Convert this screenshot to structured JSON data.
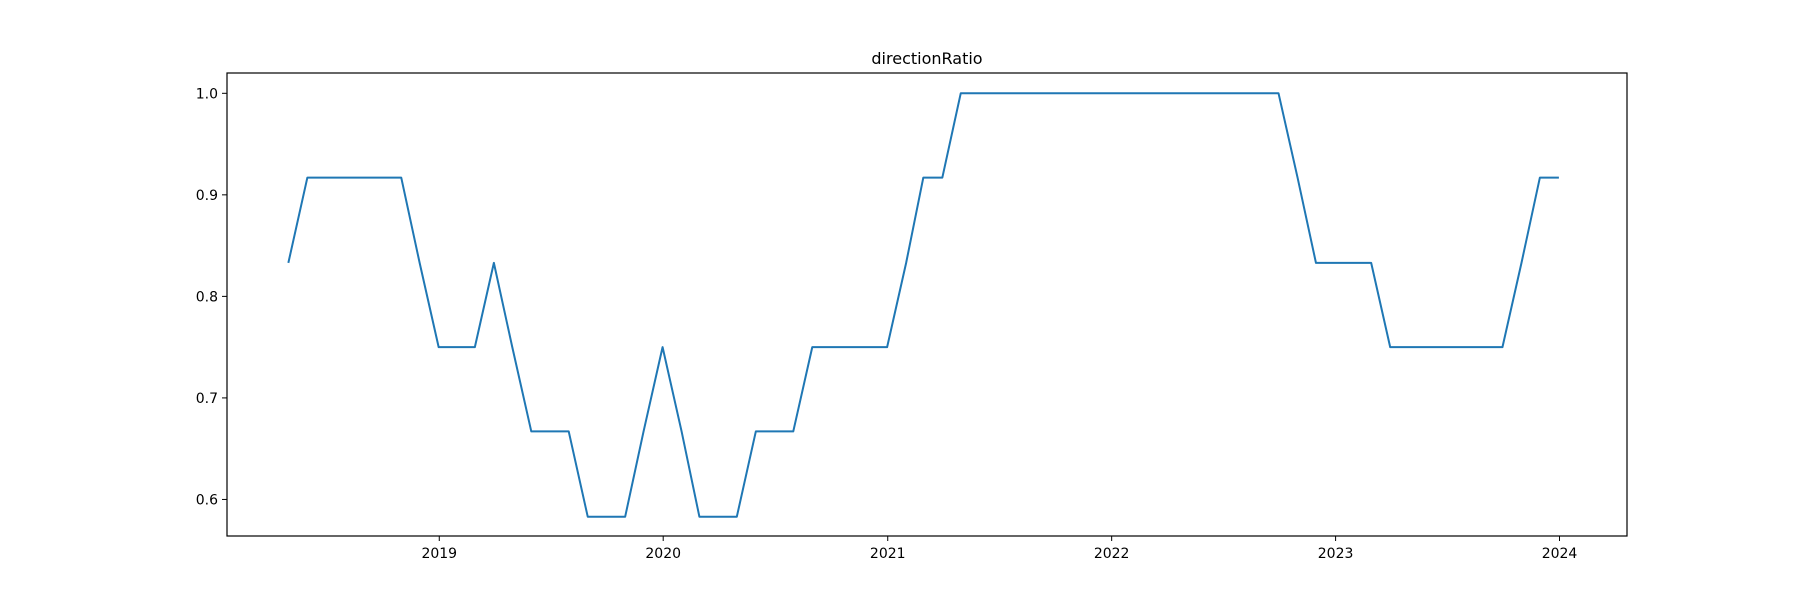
{
  "chart_data": {
    "type": "line",
    "title": "directionRatio",
    "xlabel": "",
    "ylabel": "",
    "x_type": "date",
    "xlim": [
      "2018-01-20",
      "2024-04-20"
    ],
    "ylim": [
      0.564,
      1.02
    ],
    "x_ticks": [
      "2019",
      "2020",
      "2021",
      "2022",
      "2023",
      "2024"
    ],
    "y_ticks": [
      "0.6",
      "0.7",
      "0.8",
      "0.9",
      "1.0"
    ],
    "grid": false,
    "legend": "none",
    "line_color": "#1f77b4",
    "series": [
      {
        "x": [
          "2018-04-30",
          "2018-05-31",
          "2018-06-30",
          "2018-07-31",
          "2018-08-31",
          "2018-09-30",
          "2018-10-31",
          "2018-11-30",
          "2018-12-31",
          "2019-01-31",
          "2019-02-28",
          "2019-03-31",
          "2019-04-30",
          "2019-05-31",
          "2019-06-30",
          "2019-07-31",
          "2019-08-31",
          "2019-09-30",
          "2019-10-31",
          "2019-11-30",
          "2019-12-31",
          "2020-01-31",
          "2020-02-29",
          "2020-03-31",
          "2020-04-30",
          "2020-05-31",
          "2020-06-30",
          "2020-07-31",
          "2020-08-31",
          "2020-09-30",
          "2020-10-31",
          "2020-11-30",
          "2020-12-31",
          "2021-01-31",
          "2021-02-28",
          "2021-03-31",
          "2021-04-30",
          "2021-05-31",
          "2021-06-30",
          "2021-07-31",
          "2021-08-31",
          "2021-09-30",
          "2021-10-31",
          "2021-11-30",
          "2021-12-31",
          "2022-01-31",
          "2022-02-28",
          "2022-03-31",
          "2022-04-30",
          "2022-05-31",
          "2022-06-30",
          "2022-07-31",
          "2022-08-31",
          "2022-09-30",
          "2022-10-31",
          "2022-11-30",
          "2022-12-31",
          "2023-01-31",
          "2023-02-28",
          "2023-03-31",
          "2023-04-30",
          "2023-05-31",
          "2023-06-30",
          "2023-07-31",
          "2023-08-31",
          "2023-09-30",
          "2023-10-31",
          "2023-11-30",
          "2023-12-31"
        ],
        "values": [
          0.833,
          0.917,
          0.917,
          0.917,
          0.917,
          0.917,
          0.917,
          0.833,
          0.75,
          0.75,
          0.75,
          0.833,
          0.75,
          0.667,
          0.667,
          0.667,
          0.583,
          0.583,
          0.583,
          0.667,
          0.75,
          0.667,
          0.583,
          0.583,
          0.583,
          0.667,
          0.667,
          0.667,
          0.75,
          0.75,
          0.75,
          0.75,
          0.75,
          0.833,
          0.917,
          0.917,
          1.0,
          1.0,
          1.0,
          1.0,
          1.0,
          1.0,
          1.0,
          1.0,
          1.0,
          1.0,
          1.0,
          1.0,
          1.0,
          1.0,
          1.0,
          1.0,
          1.0,
          1.0,
          0.917,
          0.833,
          0.833,
          0.833,
          0.833,
          0.75,
          0.75,
          0.75,
          0.75,
          0.75,
          0.75,
          0.75,
          0.833,
          0.917,
          0.917
        ]
      }
    ]
  }
}
